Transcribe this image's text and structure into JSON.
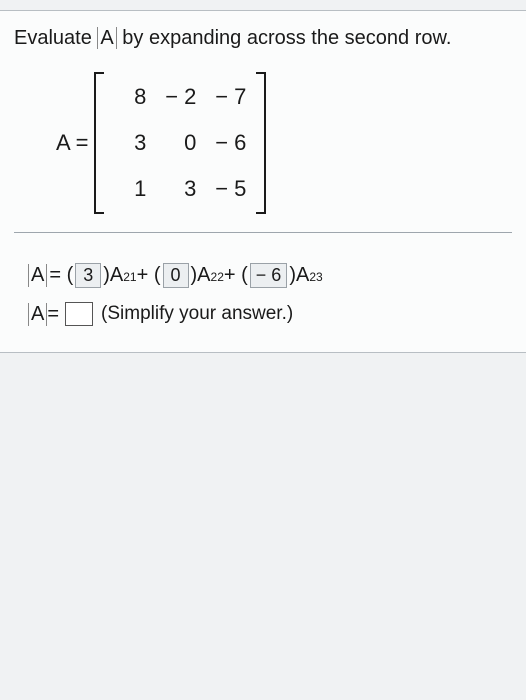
{
  "question": {
    "prefix": "Evaluate ",
    "det_var": "A",
    "suffix": " by expanding across the second row."
  },
  "matrix": {
    "label": "A =",
    "rows": [
      [
        "8",
        "− 2",
        "− 7"
      ],
      [
        "3",
        "0",
        "− 6"
      ],
      [
        "1",
        "3",
        "− 5"
      ]
    ]
  },
  "expansion": {
    "det_var": "A",
    "eq": " = ( ",
    "c1": "3",
    "a21": ")A",
    "s21": "21",
    "plus1": " + ( ",
    "c2": "0",
    "a22": ")A",
    "s22": "22",
    "plus2": " + ( ",
    "c3": "− 6",
    "a23": ")A",
    "s23": "23"
  },
  "final": {
    "det_var": "A",
    "eq": " = ",
    "hint": "(Simplify your answer.)"
  },
  "colors": {
    "page_bg": "#e8ebed",
    "panel_bg": "#fbfcfc",
    "border": "#b8bec3",
    "text": "#1a1a1a",
    "filled_bg": "#eceff1",
    "filled_border": "#9aa1a7"
  }
}
